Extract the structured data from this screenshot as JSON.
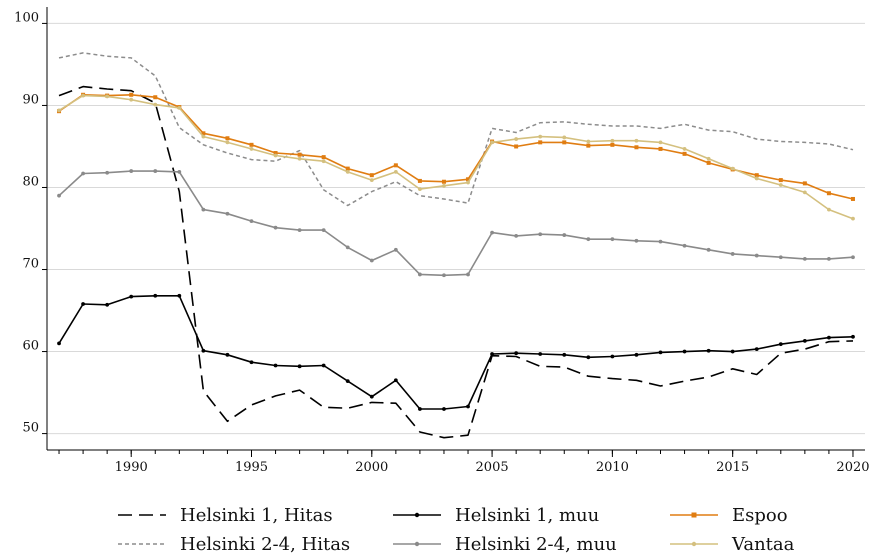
{
  "chart_data": {
    "type": "line",
    "title": "",
    "xlabel": "",
    "ylabel": "",
    "xlim": [
      1986.5,
      2020.5
    ],
    "ylim": [
      48,
      102
    ],
    "grid": "horizontal",
    "legend_position": "bottom",
    "x_ticks": [
      1990,
      1995,
      2000,
      2005,
      2010,
      2015,
      2020
    ],
    "y_ticks": [
      50,
      60,
      70,
      80,
      90,
      100
    ],
    "x": [
      1987,
      1988,
      1989,
      1990,
      1991,
      1992,
      1993,
      1994,
      1995,
      1996,
      1997,
      1998,
      1999,
      2000,
      2001,
      2002,
      2003,
      2004,
      2005,
      2006,
      2007,
      2008,
      2009,
      2010,
      2011,
      2012,
      2013,
      2014,
      2015,
      2016,
      2017,
      2018,
      2019,
      2020
    ],
    "series": [
      {
        "name": "Helsinki 1, Hitas",
        "color": "#000000",
        "style": "dashed",
        "marker": "none",
        "values": [
          91.2,
          92.3,
          92.0,
          91.8,
          90.3,
          79.5,
          55.2,
          51.5,
          53.5,
          54.6,
          55.3,
          53.2,
          53.1,
          53.8,
          53.7,
          50.2,
          49.5,
          49.8,
          59.5,
          59.4,
          58.2,
          58.1,
          57.0,
          56.7,
          56.5,
          55.8,
          56.4,
          56.9,
          57.9,
          57.2,
          59.8,
          60.3,
          61.2,
          61.3
        ]
      },
      {
        "name": "Helsinki 2-4, Hitas",
        "color": "#8c8c8c",
        "style": "dotted",
        "marker": "none",
        "values": [
          95.8,
          96.4,
          96.0,
          95.8,
          93.6,
          87.3,
          85.2,
          84.2,
          83.4,
          83.2,
          84.5,
          79.7,
          77.8,
          79.5,
          80.7,
          79.0,
          78.6,
          78.1,
          87.2,
          86.7,
          87.9,
          88.0,
          87.7,
          87.5,
          87.5,
          87.2,
          87.7,
          87.0,
          86.8,
          85.9,
          85.6,
          85.5,
          85.3,
          84.6
        ]
      },
      {
        "name": "Helsinki 1, muu",
        "color": "#000000",
        "style": "solid",
        "marker": "dot",
        "values": [
          61.0,
          65.8,
          65.7,
          66.7,
          66.8,
          66.8,
          60.1,
          59.6,
          58.7,
          58.3,
          58.2,
          58.3,
          56.4,
          54.5,
          56.5,
          53.0,
          53.0,
          53.3,
          59.7,
          59.8,
          59.7,
          59.6,
          59.3,
          59.4,
          59.6,
          59.9,
          60.0,
          60.1,
          60.0,
          60.3,
          60.9,
          61.3,
          61.7,
          61.8
        ]
      },
      {
        "name": "Helsinki 2-4, muu",
        "color": "#8a8a8a",
        "style": "solid",
        "marker": "dot",
        "values": [
          79.0,
          81.7,
          81.8,
          82.0,
          82.0,
          81.9,
          77.3,
          76.8,
          75.9,
          75.1,
          74.8,
          74.8,
          72.7,
          71.1,
          72.4,
          69.4,
          69.3,
          69.4,
          74.5,
          74.1,
          74.3,
          74.2,
          73.7,
          73.7,
          73.5,
          73.4,
          72.9,
          72.4,
          71.9,
          71.7,
          71.5,
          71.3,
          71.3,
          71.5
        ]
      },
      {
        "name": "Espoo",
        "color": "#e07d12",
        "style": "solid",
        "marker": "square",
        "values": [
          89.3,
          91.3,
          91.2,
          91.3,
          91.0,
          89.8,
          86.6,
          86.0,
          85.2,
          84.2,
          84.0,
          83.7,
          82.3,
          81.5,
          82.7,
          80.8,
          80.7,
          81.0,
          85.6,
          85.0,
          85.5,
          85.5,
          85.1,
          85.2,
          84.9,
          84.7,
          84.1,
          83.0,
          82.2,
          81.5,
          80.9,
          80.5,
          79.3,
          78.6
        ]
      },
      {
        "name": "Vantaa",
        "color": "#d4c07f",
        "style": "solid",
        "marker": "dot",
        "values": [
          89.4,
          91.2,
          91.1,
          90.7,
          90.1,
          89.7,
          86.2,
          85.5,
          84.7,
          83.9,
          83.5,
          83.2,
          81.9,
          80.9,
          81.9,
          79.8,
          80.2,
          80.6,
          85.5,
          85.9,
          86.2,
          86.1,
          85.6,
          85.7,
          85.7,
          85.5,
          84.7,
          83.5,
          82.3,
          81.1,
          80.3,
          79.4,
          77.3,
          76.2
        ]
      }
    ],
    "legend": {
      "rows": [
        [
          "Helsinki 1, Hitas",
          "Helsinki 1, muu",
          "Espoo"
        ],
        [
          "Helsinki 2-4, Hitas",
          "Helsinki 2-4, muu",
          "Vantaa"
        ]
      ]
    }
  }
}
